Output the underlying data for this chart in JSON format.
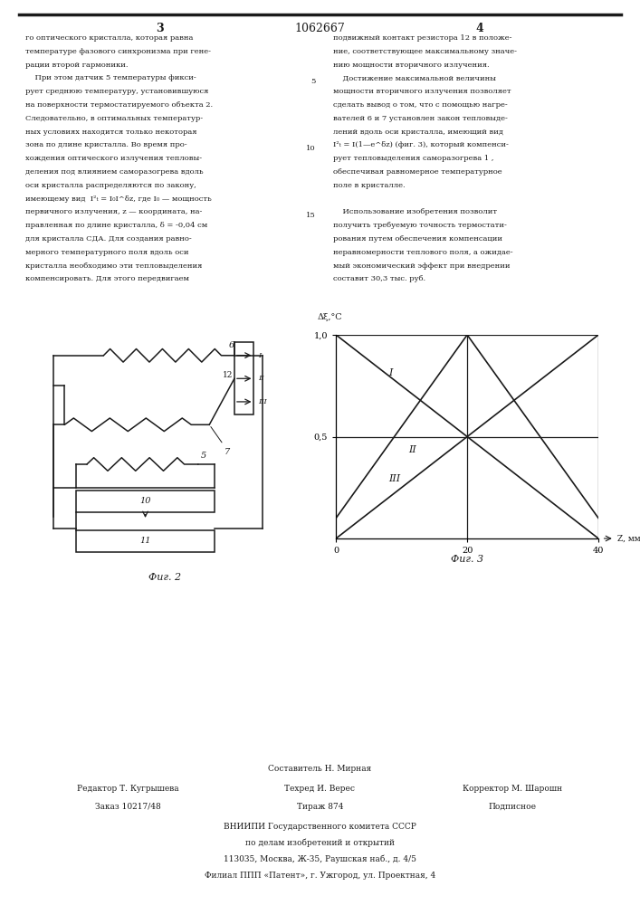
{
  "page_number_center": "1062667",
  "page_num_left": "3",
  "page_num_right": "4",
  "text_col1": [
    "го оптического кристалла, которая равна",
    "температуре фазового синхронизма при гене-",
    "рации второй гармоники.",
    "    При этом датчик 5 температуры фикси-",
    "рует среднюю температуру, установившуюся",
    "на поверхности термостатируемого объекта 2.",
    "Следовательно, в оптимальных температур-",
    "ных условиях находится только некоторая",
    "зона по длине кристалла. Во время про-",
    "хождения оптического излучения тепловы-",
    "деления под влиянием саморазогрева вдоль",
    "оси кристалла распределяются по закону,",
    "имеющему вид  I²ₜ = I₀I^δz, где I₀ — мощность",
    "первичного излучения, z — координата, на-",
    "правленная по длине кристалла, δ = -0,04 см",
    "для кристалла СДА. Для создания равно-",
    "мерного температурного поля вдоль оси",
    "кристалла необходимо эти тепловыделения",
    "компенсировать. Для этого передвигаем"
  ],
  "text_col2": [
    "подвижный контакт резистора 12 в положе-",
    "ние, соответствующее максимальному значе-",
    "нию мощности вторичного излучения.",
    "    Достижение максимальной величины",
    "мощности вторичного излучения позволяет",
    "сделать вывод о том, что с помощью нагре-",
    "вателей 6 и 7 установлен закон тепловыде-",
    "лений вдоль оси кристалла, имеющий вид",
    "I²ₜ = I(1—e^δz) (фиг. 3), который компенси-",
    "рует тепловыделения саморазогрева 1 ,",
    "обеспечивая равномерное температурное",
    "поле в кристалле.",
    "",
    "    Использование изобретения позволит",
    "получить требуемую точность термостати-",
    "рования путем обеспечения компенсации",
    "неравномерности теплового поля, а ожидае-",
    "мый экономический эффект при внедрении",
    "составит 30,3 тыс. руб."
  ],
  "linenums": [
    [
      3,
      "5"
    ],
    [
      8,
      "10"
    ],
    [
      13,
      "15"
    ]
  ],
  "fig2_caption": "Фиг. 2",
  "fig3_caption": "Фиг. 3",
  "footer_line1_center": "Составитель Н. Мирная",
  "footer_line2_left": "Редактор Т. Кугрышева",
  "footer_line2_center": "Техред И. Верес",
  "footer_line2_right": "Корректор М. Шарошн",
  "footer_line3_left": "Заказ 10217/48",
  "footer_line3_center": "Тираж 874",
  "footer_line3_right": "Подписное",
  "footer_org1": "ВНИИПИ Государственного комитета СССР",
  "footer_org2": "по делам изобретений и открытий",
  "footer_org3": "113035, Москва, Ж-35, Раушская наб., д. 4/5",
  "footer_org4": "Филиал ППП «Патент», г. Ужгород, ул. Проектная, 4",
  "background_color": "#ffffff",
  "text_color": "#1a1a1a",
  "line_color": "#1a1a1a"
}
